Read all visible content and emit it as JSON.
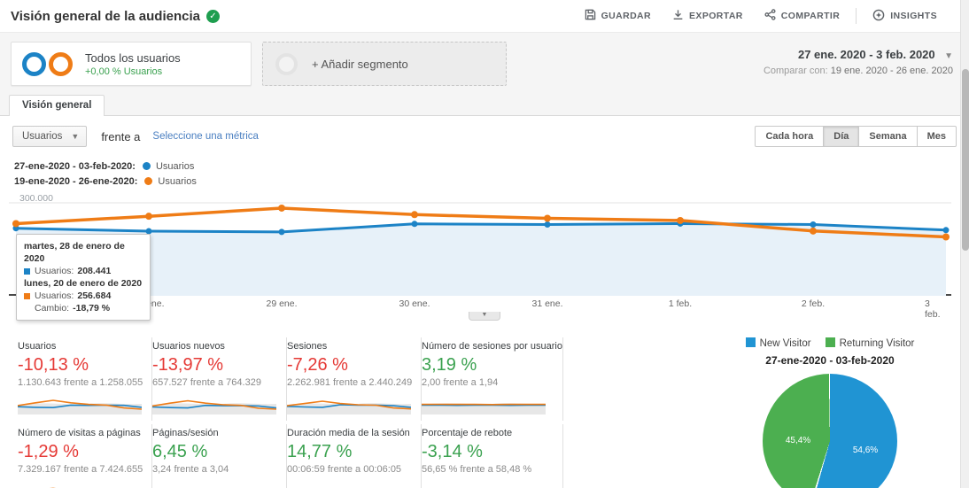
{
  "colors": {
    "series_current": "#1c83c6",
    "series_previous": "#ef7c16",
    "area_fill": "#e7f1f9",
    "negative": "#e53935",
    "positive": "#3aa14f",
    "link": "#4a7fc1",
    "pie_new": "#2094d3",
    "pie_returning": "#4caf50"
  },
  "header": {
    "title": "Visión general de la audiencia",
    "actions": [
      {
        "label": "GUARDAR",
        "icon": "save-icon"
      },
      {
        "label": "EXPORTAR",
        "icon": "download-icon"
      },
      {
        "label": "COMPARTIR",
        "icon": "share-icon"
      },
      {
        "label": "INSIGHTS",
        "icon": "insights-icon"
      }
    ]
  },
  "segments": {
    "all_users_label": "Todos los usuarios",
    "all_users_delta": "+0,00 % Usuarios",
    "add_segment_label": "+ Añadir segmento"
  },
  "date_range": {
    "primary": "27 ene. 2020 - 3 feb. 2020",
    "compare_prefix": "Comparar con:",
    "compare_range": "19 ene. 2020 - 26 ene. 2020"
  },
  "tab": {
    "label": "Visión general"
  },
  "toolbar": {
    "metric_selector": "Usuarios",
    "vs_label": "frente a",
    "select_metric_link": "Seleccione una métrica",
    "granularity": [
      "Cada hora",
      "Día",
      "Semana",
      "Mes"
    ],
    "granularity_active": "Día"
  },
  "chart_legend": [
    {
      "date_range": "27-ene-2020 - 03-feb-2020:",
      "metric": "Usuarios",
      "color_key": "series_current"
    },
    {
      "date_range": "19-ene-2020 - 26-ene-2020:",
      "metric": "Usuarios",
      "color_key": "series_previous"
    }
  ],
  "tooltip": {
    "current_date": "martes, 28 de enero de 2020",
    "current_metric": "Usuarios:",
    "current_value": "208.441",
    "previous_date": "lunes, 20 de enero de 2020",
    "previous_metric": "Usuarios:",
    "previous_value": "256.684",
    "change_label": "Cambio:",
    "change_value": "-18,79 %"
  },
  "chart_data": [
    {
      "type": "line",
      "x_labels": [
        "...",
        "28 ene.",
        "29 ene.",
        "30 ene.",
        "31 ene.",
        "1 feb.",
        "2 feb.",
        "3 feb."
      ],
      "y_gridline_label": "300.000",
      "gridline_value": 300000,
      "ylim": [
        0,
        320000
      ],
      "grid": "single horizontal gridline at 300.000",
      "legend_position": "top-left",
      "series": [
        {
          "name": "Usuarios (27-ene-2020 - 03-feb-2020)",
          "color": "#1c83c6",
          "values": [
            218000,
            208441,
            206000,
            232000,
            230000,
            233000,
            230000,
            212000
          ]
        },
        {
          "name": "Usuarios (19-ene-2020 - 26-ene-2020)",
          "color": "#ef7c16",
          "values": [
            233000,
            256684,
            283000,
            262000,
            250000,
            243000,
            209000,
            190000
          ]
        }
      ]
    },
    {
      "type": "pie",
      "title": "27-ene-2020 - 03-feb-2020",
      "legend_position": "top",
      "labels": [
        "New Visitor",
        "Returning Visitor"
      ],
      "values": [
        54.6,
        45.4
      ],
      "display_labels": [
        "54,6%",
        "45,4%"
      ],
      "colors": [
        "#2094d3",
        "#4caf50"
      ]
    }
  ],
  "scorecards": [
    {
      "label": "Usuarios",
      "value": "-10,13 %",
      "color": "negative",
      "compare": "1.130.643 frente a 1.258.055",
      "spark_prev": [
        0.45,
        0.62,
        0.78,
        0.62,
        0.52,
        0.48,
        0.3,
        0.22
      ],
      "spark_cur": [
        0.38,
        0.34,
        0.32,
        0.48,
        0.46,
        0.47,
        0.46,
        0.34
      ]
    },
    {
      "label": "Usuarios nuevos",
      "value": "-13,97 %",
      "color": "negative",
      "compare": "657.527 frente a 764.329",
      "spark_prev": [
        0.42,
        0.6,
        0.75,
        0.6,
        0.5,
        0.46,
        0.28,
        0.22
      ],
      "spark_cur": [
        0.36,
        0.32,
        0.3,
        0.46,
        0.44,
        0.45,
        0.42,
        0.3
      ]
    },
    {
      "label": "Sesiones",
      "value": "-7,26 %",
      "color": "negative",
      "compare": "2.262.981 frente a 2.440.249",
      "spark_prev": [
        0.44,
        0.58,
        0.72,
        0.58,
        0.5,
        0.47,
        0.3,
        0.24
      ],
      "spark_cur": [
        0.4,
        0.36,
        0.34,
        0.5,
        0.48,
        0.48,
        0.44,
        0.34
      ]
    },
    {
      "label": "Número de sesiones por usuario",
      "value": "3,19 %",
      "color": "positive",
      "compare": "2,00 frente a 1,94",
      "spark_prev": [
        0.52,
        0.53,
        0.52,
        0.52,
        0.51,
        0.52,
        0.52,
        0.52
      ],
      "spark_cur": [
        0.47,
        0.47,
        0.46,
        0.47,
        0.47,
        0.46,
        0.47,
        0.47
      ]
    },
    {
      "label": "Número de visitas a páginas",
      "value": "-1,29 %",
      "color": "negative",
      "compare": "7.329.167 frente a 7.424.655",
      "spark_prev": [
        0.46,
        0.6,
        0.7,
        0.56,
        0.5,
        0.52,
        0.34,
        0.3
      ],
      "spark_cur": [
        0.42,
        0.38,
        0.36,
        0.52,
        0.5,
        0.46,
        0.44,
        0.38
      ]
    },
    {
      "label": "Páginas/sesión",
      "value": "6,45 %",
      "color": "positive",
      "compare": "3,24 frente a 3,04",
      "spark_prev": [
        0.5,
        0.56,
        0.5,
        0.46,
        0.5,
        0.52,
        0.48,
        0.54
      ],
      "spark_cur": [
        0.46,
        0.5,
        0.44,
        0.42,
        0.46,
        0.47,
        0.44,
        0.52
      ]
    },
    {
      "label": "Duración media de la sesión",
      "value": "14,77 %",
      "color": "positive",
      "compare": "00:06:59 frente a 00:06:05",
      "spark_prev": [
        0.54,
        0.6,
        0.52,
        0.46,
        0.55,
        0.48,
        0.44,
        0.5
      ],
      "spark_cur": [
        0.5,
        0.53,
        0.47,
        0.4,
        0.5,
        0.42,
        0.4,
        0.62
      ]
    },
    {
      "label": "Porcentaje de rebote",
      "value": "-3,14 %",
      "color": "positive",
      "compare": "56,65 % frente a 58,48 %",
      "spark_prev": [
        0.5,
        0.52,
        0.51,
        0.52,
        0.5,
        0.48,
        0.47,
        0.46
      ],
      "spark_cur": [
        0.55,
        0.54,
        0.55,
        0.56,
        0.55,
        0.54,
        0.55,
        0.57
      ]
    }
  ]
}
